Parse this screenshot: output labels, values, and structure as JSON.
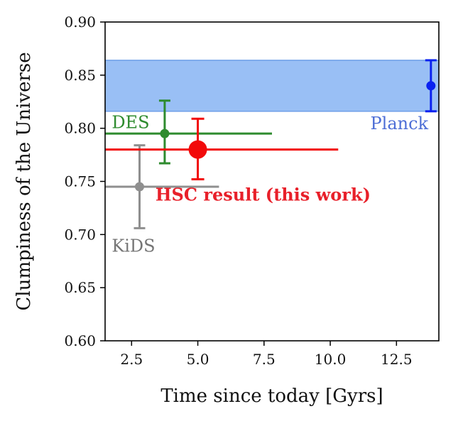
{
  "chart_data": {
    "type": "scatter",
    "title": "",
    "xlabel": "Time since today [Gyrs]",
    "ylabel": "Clumpiness of the Universe",
    "xlim": [
      1.5,
      14.1
    ],
    "ylim": [
      0.6,
      0.9
    ],
    "xticks": [
      2.5,
      5.0,
      7.5,
      10.0,
      12.5
    ],
    "xtick_labels": [
      "2.5",
      "5.0",
      "7.5",
      "10.0",
      "12.5"
    ],
    "yticks": [
      0.6,
      0.65,
      0.7,
      0.75,
      0.8,
      0.85,
      0.9
    ],
    "ytick_labels": [
      "0.60",
      "0.65",
      "0.70",
      "0.75",
      "0.80",
      "0.85",
      "0.90"
    ],
    "grid": false,
    "band": {
      "series": "Planck",
      "y_low": 0.816,
      "y_high": 0.864,
      "color": "#99bff5"
    },
    "series": [
      {
        "name": "Planck",
        "x": 13.8,
        "y": 0.84,
        "y_err_low": 0.816,
        "y_err_high": 0.864,
        "x_err_low": 13.8,
        "x_err_high": 13.8,
        "color": "#0a21f0",
        "marker": "small"
      },
      {
        "name": "DES",
        "x": 3.75,
        "y": 0.795,
        "y_err_low": 0.767,
        "y_err_high": 0.826,
        "x_err_low": 1.5,
        "x_err_high": 7.8,
        "color": "#2e8b2e",
        "marker": "small"
      },
      {
        "name": "HSC result (this work)",
        "x": 5.0,
        "y": 0.78,
        "y_err_low": 0.752,
        "y_err_high": 0.809,
        "x_err_low": 1.5,
        "x_err_high": 10.3,
        "color": "#f20a0a",
        "marker": "large"
      },
      {
        "name": "KiDS",
        "x": 2.8,
        "y": 0.745,
        "y_err_low": 0.706,
        "y_err_high": 0.784,
        "x_err_low": 1.5,
        "x_err_high": 5.8,
        "color": "#8f8f8f",
        "marker": "small"
      }
    ],
    "annotations": [
      {
        "series": "DES",
        "text": "DES",
        "x": 1.75,
        "y": 0.8,
        "color": "#2e8b2e",
        "bold": false,
        "anchor": "start"
      },
      {
        "series": "Planck",
        "text": "Planck",
        "x": 13.7,
        "y": 0.799,
        "color": "#4d6ed6",
        "bold": false,
        "anchor": "end"
      },
      {
        "series": "HSC result (this work)",
        "text": "HSC result (this work)",
        "x": 3.4,
        "y": 0.732,
        "color": "#e8202a",
        "bold": true,
        "anchor": "start"
      },
      {
        "series": "KiDS",
        "text": "KiDS",
        "x": 1.75,
        "y": 0.684,
        "color": "#757575",
        "bold": false,
        "anchor": "start"
      }
    ]
  }
}
